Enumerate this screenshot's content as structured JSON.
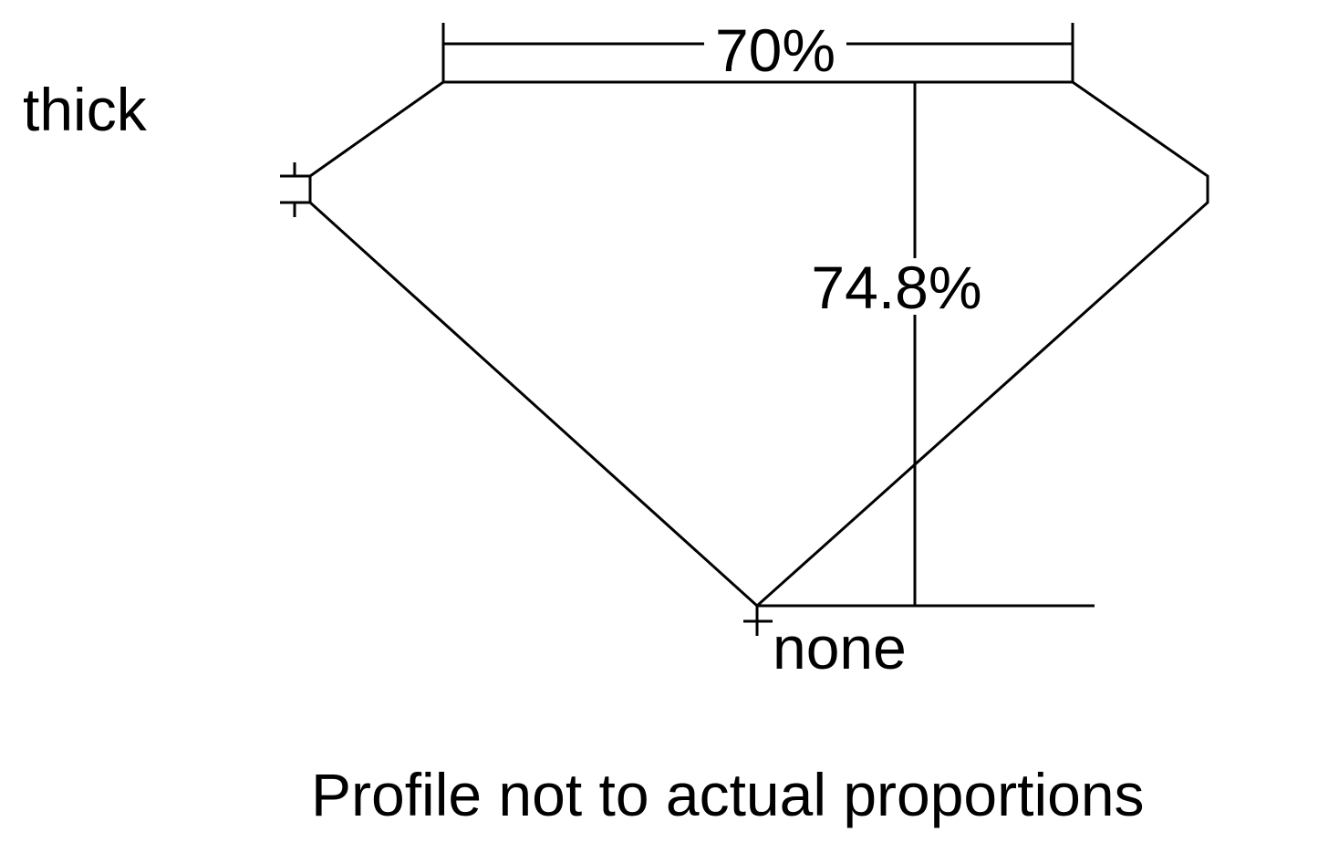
{
  "labels": {
    "girdle": "thick",
    "table_percent": "70%",
    "depth_percent": "74.8%",
    "culet": "none",
    "caption": "Profile not to actual proportions"
  },
  "colors": {
    "line": "#000000",
    "background": "#ffffff"
  }
}
